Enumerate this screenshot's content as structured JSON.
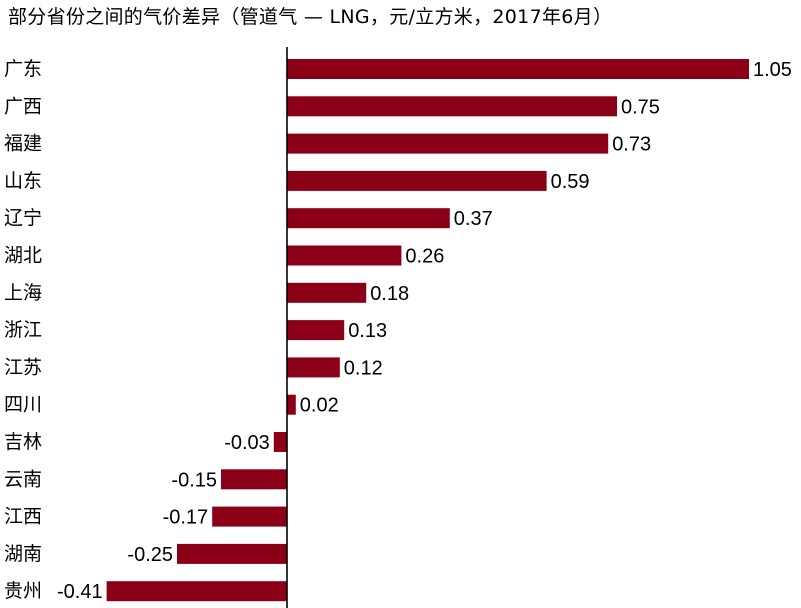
{
  "chart_data": {
    "type": "bar",
    "orientation": "horizontal",
    "title": "部分省份之间的气价差异（管道气 — LNG，元/立方米，2017年6月）",
    "categories": [
      "广东",
      "广西",
      "福建",
      "山东",
      "辽宁",
      "湖北",
      "上海",
      "浙江",
      "江苏",
      "四川",
      "吉林",
      "云南",
      "江西",
      "湖南",
      "贵州"
    ],
    "values": [
      1.05,
      0.75,
      0.73,
      0.59,
      0.37,
      0.26,
      0.18,
      0.13,
      0.12,
      0.02,
      -0.03,
      -0.15,
      -0.17,
      -0.25,
      -0.41
    ],
    "value_labels": [
      "1.05",
      "0.75",
      "0.73",
      "0.59",
      "0.37",
      "0.26",
      "0.18",
      "0.13",
      "0.12",
      "0.02",
      "-0.03",
      "-0.15",
      "-0.17",
      "-0.25",
      "-0.41"
    ],
    "xlim": [
      -0.41,
      1.05
    ],
    "grid": false,
    "legend": "none",
    "bar_color": "#8b0016",
    "axis_color": "#000000"
  }
}
